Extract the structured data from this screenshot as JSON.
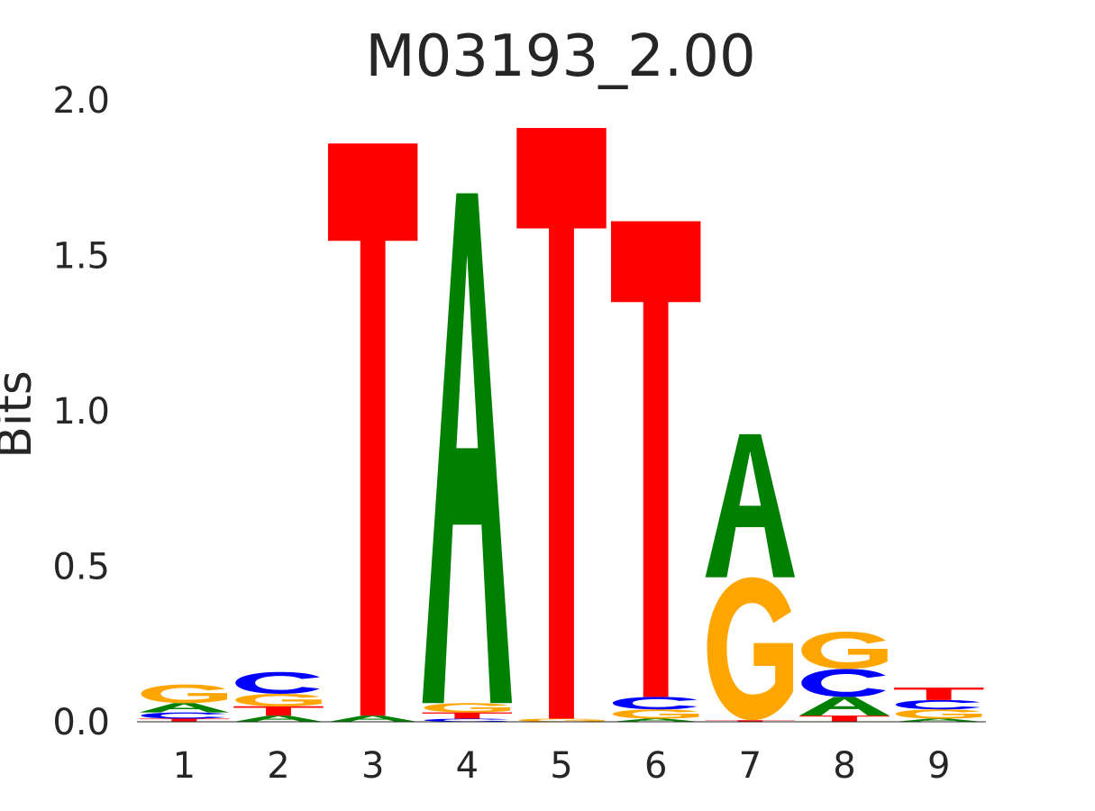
{
  "colors": {
    "A": "#008000",
    "C": "#0000ff",
    "G": "#ffa500",
    "T": "#ff0000",
    "text": "#262626",
    "background": "#ffffff"
  },
  "chart_data": {
    "type": "sequence-logo",
    "title": "M03193_2.00",
    "xlabel": "",
    "ylabel": "Bits",
    "ylim": [
      0,
      2.0
    ],
    "yticks": [
      "0.0",
      "0.5",
      "1.0",
      "1.5",
      "2.0"
    ],
    "xticks": [
      "1",
      "2",
      "3",
      "4",
      "5",
      "6",
      "7",
      "8",
      "9"
    ],
    "grid": false,
    "positions": [
      {
        "position": 1,
        "letters": [
          {
            "base": "T",
            "bits": 0.01
          },
          {
            "base": "C",
            "bits": 0.02
          },
          {
            "base": "A",
            "bits": 0.03
          },
          {
            "base": "G",
            "bits": 0.06
          }
        ]
      },
      {
        "position": 2,
        "letters": [
          {
            "base": "A",
            "bits": 0.02
          },
          {
            "base": "T",
            "bits": 0.03
          },
          {
            "base": "G",
            "bits": 0.04
          },
          {
            "base": "C",
            "bits": 0.07
          }
        ]
      },
      {
        "position": 3,
        "letters": [
          {
            "base": "A",
            "bits": 0.02
          },
          {
            "base": "T",
            "bits": 1.84
          }
        ]
      },
      {
        "position": 4,
        "letters": [
          {
            "base": "C",
            "bits": 0.01
          },
          {
            "base": "T",
            "bits": 0.02
          },
          {
            "base": "G",
            "bits": 0.03
          },
          {
            "base": "A",
            "bits": 1.64
          }
        ]
      },
      {
        "position": 5,
        "letters": [
          {
            "base": "G",
            "bits": 0.01
          },
          {
            "base": "T",
            "bits": 1.9
          }
        ]
      },
      {
        "position": 6,
        "letters": [
          {
            "base": "A",
            "bits": 0.01
          },
          {
            "base": "G",
            "bits": 0.03
          },
          {
            "base": "C",
            "bits": 0.04
          },
          {
            "base": "T",
            "bits": 1.53
          }
        ]
      },
      {
        "position": 7,
        "letters": [
          {
            "base": "T",
            "bits": 0.005
          },
          {
            "base": "G",
            "bits": 0.46
          },
          {
            "base": "A",
            "bits": 0.46
          }
        ]
      },
      {
        "position": 8,
        "letters": [
          {
            "base": "T",
            "bits": 0.02
          },
          {
            "base": "A",
            "bits": 0.06
          },
          {
            "base": "C",
            "bits": 0.09
          },
          {
            "base": "G",
            "bits": 0.12
          }
        ]
      },
      {
        "position": 9,
        "letters": [
          {
            "base": "A",
            "bits": 0.01
          },
          {
            "base": "G",
            "bits": 0.03
          },
          {
            "base": "C",
            "bits": 0.03
          },
          {
            "base": "T",
            "bits": 0.04
          }
        ]
      }
    ]
  }
}
